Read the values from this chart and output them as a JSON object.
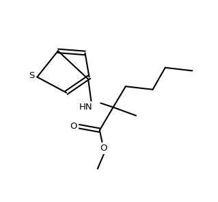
{
  "background_color": "#ffffff",
  "line_color": "#000000",
  "line_width": 1.5,
  "figsize": [
    3.19,
    2.95
  ],
  "dpi": 100,
  "xlim": [
    0,
    10
  ],
  "ylim": [
    0,
    9.5
  ],
  "atoms": {
    "S_label": "S",
    "N_label": "HN",
    "O1_label": "O",
    "O2_label": "O"
  },
  "font_size": 9.5
}
